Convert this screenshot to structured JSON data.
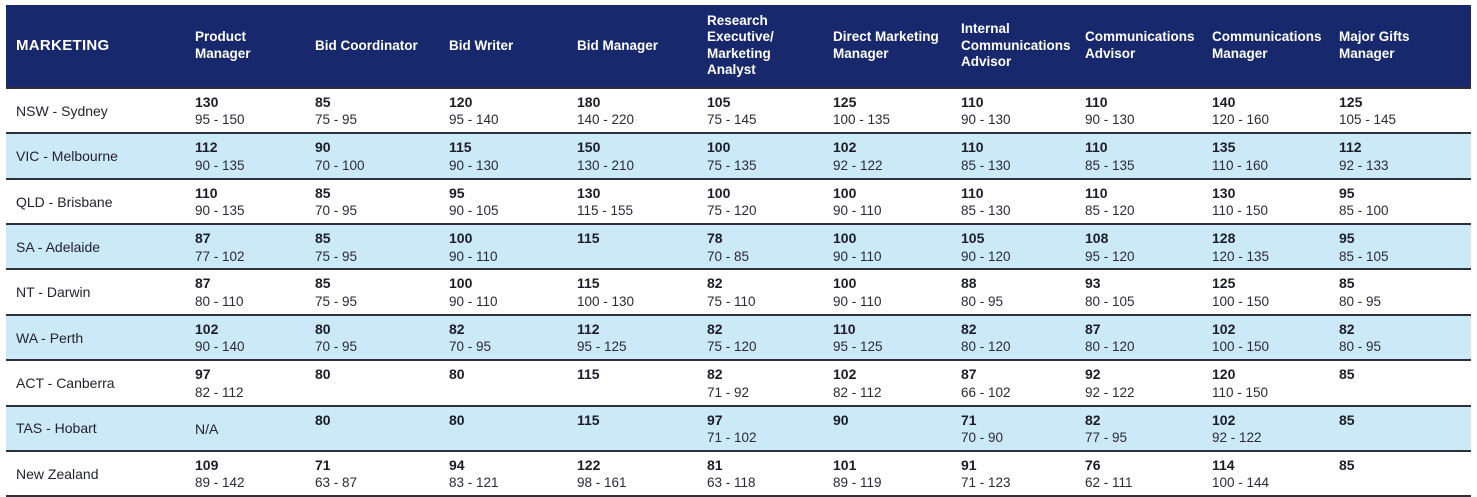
{
  "colors": {
    "header_navy": "#17286d",
    "alt_row_blue": "#cbe9f6",
    "row_divider": "#30303c",
    "header_text": "#ffffff",
    "body_text": "#23232f"
  },
  "table": {
    "header": {
      "region_label": "MARKETING",
      "columns": [
        "Product Manager",
        "Bid Coordinator",
        "Bid Writer",
        "Bid Manager",
        "Research Executive/ Marketing Analyst",
        "Direct Marketing Manager",
        "Internal Communications Advisor",
        "Communications Advisor",
        "Communications Manager",
        "Major Gifts Manager"
      ]
    },
    "rows": [
      {
        "region": "NSW - Sydney",
        "cells": [
          {
            "median": "130",
            "range": "95 - 150"
          },
          {
            "median": "85",
            "range": "75 - 95"
          },
          {
            "median": "120",
            "range": "95 - 140"
          },
          {
            "median": "180",
            "range": "140 - 220"
          },
          {
            "median": "105",
            "range": "75 - 145"
          },
          {
            "median": "125",
            "range": "100 - 135"
          },
          {
            "median": "110",
            "range": "90 - 130"
          },
          {
            "median": "110",
            "range": "90 - 130"
          },
          {
            "median": "140",
            "range": "120 - 160"
          },
          {
            "median": "125",
            "range": "105 - 145"
          }
        ]
      },
      {
        "region": "VIC - Melbourne",
        "cells": [
          {
            "median": "112",
            "range": "90 - 135"
          },
          {
            "median": "90",
            "range": "70 - 100"
          },
          {
            "median": "115",
            "range": "90 - 130"
          },
          {
            "median": "150",
            "range": "130 - 210"
          },
          {
            "median": "100",
            "range": "75 - 135"
          },
          {
            "median": "102",
            "range": "92 - 122"
          },
          {
            "median": "110",
            "range": "85 - 130"
          },
          {
            "median": "110",
            "range": "85 - 135"
          },
          {
            "median": "135",
            "range": "110 - 160"
          },
          {
            "median": "112",
            "range": "92 - 133"
          }
        ]
      },
      {
        "region": "QLD - Brisbane",
        "cells": [
          {
            "median": "110",
            "range": "90 - 135"
          },
          {
            "median": "85",
            "range": "70 - 95"
          },
          {
            "median": "95",
            "range": "90 - 105"
          },
          {
            "median": "130",
            "range": "115 - 155"
          },
          {
            "median": "100",
            "range": "75 - 120"
          },
          {
            "median": "100",
            "range": "90 - 110"
          },
          {
            "median": "110",
            "range": "85 - 130"
          },
          {
            "median": "110",
            "range": "85 - 120"
          },
          {
            "median": "130",
            "range": "110 - 150"
          },
          {
            "median": "95",
            "range": "85 - 100"
          }
        ]
      },
      {
        "region": "SA - Adelaide",
        "cells": [
          {
            "median": "87",
            "range": "77 - 102"
          },
          {
            "median": "85",
            "range": "75 - 95"
          },
          {
            "median": "100",
            "range": "90 - 110"
          },
          {
            "median": "115",
            "range": ""
          },
          {
            "median": "78",
            "range": "70 - 85"
          },
          {
            "median": "100",
            "range": "90 - 110"
          },
          {
            "median": "105",
            "range": "90 - 120"
          },
          {
            "median": "108",
            "range": "95 - 120"
          },
          {
            "median": "128",
            "range": "120 - 135"
          },
          {
            "median": "95",
            "range": "85 - 105"
          }
        ]
      },
      {
        "region": "NT - Darwin",
        "cells": [
          {
            "median": "87",
            "range": "80 - 110"
          },
          {
            "median": "85",
            "range": "75 - 95"
          },
          {
            "median": "100",
            "range": "90 - 110"
          },
          {
            "median": "115",
            "range": "100 - 130"
          },
          {
            "median": "82",
            "range": "75 - 110"
          },
          {
            "median": "100",
            "range": "90 - 110"
          },
          {
            "median": "88",
            "range": "80 - 95"
          },
          {
            "median": "93",
            "range": "80 - 105"
          },
          {
            "median": "125",
            "range": "100 - 150"
          },
          {
            "median": "85",
            "range": "80 - 95"
          }
        ]
      },
      {
        "region": "WA - Perth",
        "cells": [
          {
            "median": "102",
            "range": "90 - 140"
          },
          {
            "median": "80",
            "range": "70 - 95"
          },
          {
            "median": "82",
            "range": "70 - 95"
          },
          {
            "median": "112",
            "range": "95 - 125"
          },
          {
            "median": "82",
            "range": "75 - 120"
          },
          {
            "median": "110",
            "range": "95 - 125"
          },
          {
            "median": "82",
            "range": "80 - 120"
          },
          {
            "median": "87",
            "range": "80 - 120"
          },
          {
            "median": "102",
            "range": "100 - 150"
          },
          {
            "median": "82",
            "range": "80 - 95"
          }
        ]
      },
      {
        "region": "ACT - Canberra",
        "cells": [
          {
            "median": "97",
            "range": "82 - 112"
          },
          {
            "median": "80",
            "range": ""
          },
          {
            "median": "80",
            "range": ""
          },
          {
            "median": "115",
            "range": ""
          },
          {
            "median": "82",
            "range": "71 - 92"
          },
          {
            "median": "102",
            "range": "82 - 112"
          },
          {
            "median": "87",
            "range": "66 - 102"
          },
          {
            "median": "92",
            "range": "92 - 122"
          },
          {
            "median": "120",
            "range": "110 - 150"
          },
          {
            "median": "85",
            "range": ""
          }
        ]
      },
      {
        "region": "TAS - Hobart",
        "cells": [
          {
            "plain": "N/A"
          },
          {
            "median": "80",
            "range": ""
          },
          {
            "median": "80",
            "range": ""
          },
          {
            "median": "115",
            "range": ""
          },
          {
            "median": "97",
            "range": "71 - 102"
          },
          {
            "median": "90",
            "range": ""
          },
          {
            "median": "71",
            "range": "70 - 90"
          },
          {
            "median": "82",
            "range": "77 - 95"
          },
          {
            "median": "102",
            "range": "92 - 122"
          },
          {
            "median": "85",
            "range": ""
          }
        ]
      },
      {
        "region": "New Zealand",
        "cells": [
          {
            "median": "109",
            "range": "89 - 142"
          },
          {
            "median": "71",
            "range": "63 - 87"
          },
          {
            "median": "94",
            "range": "83 - 121"
          },
          {
            "median": "122",
            "range": "98 - 161"
          },
          {
            "median": "81",
            "range": "63 - 118"
          },
          {
            "median": "101",
            "range": "89 - 119"
          },
          {
            "median": "91",
            "range": "71 - 123"
          },
          {
            "median": "76",
            "range": "62 - 111"
          },
          {
            "median": "114",
            "range": "100 - 144"
          },
          {
            "median": "85",
            "range": ""
          }
        ]
      }
    ]
  }
}
